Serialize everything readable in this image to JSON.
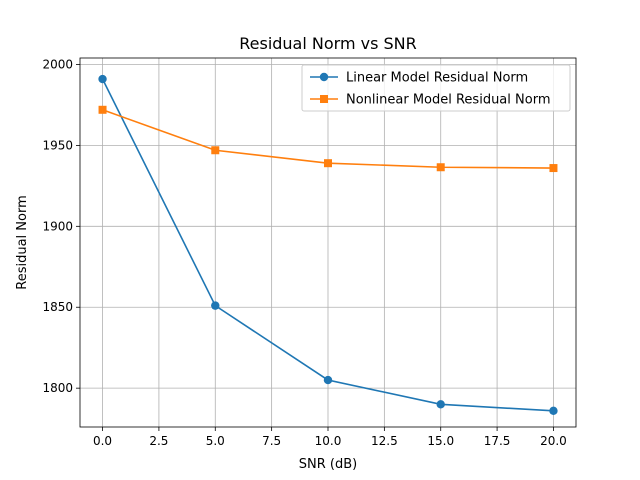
{
  "chart_data": {
    "type": "line",
    "title": "Residual Norm vs SNR",
    "xlabel": "SNR (dB)",
    "ylabel": "Residual Norm",
    "x": [
      0,
      5,
      10,
      15,
      20
    ],
    "xlim": [
      -1,
      21
    ],
    "ylim": [
      1776,
      2004
    ],
    "xticks": [
      0.0,
      2.5,
      5.0,
      7.5,
      10.0,
      12.5,
      15.0,
      17.5,
      20.0
    ],
    "xtick_labels": [
      "0.0",
      "2.5",
      "5.0",
      "7.5",
      "10.0",
      "12.5",
      "15.0",
      "17.5",
      "20.0"
    ],
    "yticks": [
      1800,
      1850,
      1900,
      1950,
      2000
    ],
    "ytick_labels": [
      "1800",
      "1850",
      "1900",
      "1950",
      "2000"
    ],
    "grid": true,
    "legend_position": "top-right",
    "series": [
      {
        "name": "Linear Model Residual Norm",
        "values": [
          1991,
          1851,
          1805,
          1790,
          1786
        ],
        "color": "#1f77b4",
        "marker": "circle"
      },
      {
        "name": "Nonlinear Model Residual Norm",
        "values": [
          1972,
          1947,
          1939,
          1936.5,
          1936
        ],
        "color": "#ff7f0e",
        "marker": "square"
      }
    ]
  }
}
